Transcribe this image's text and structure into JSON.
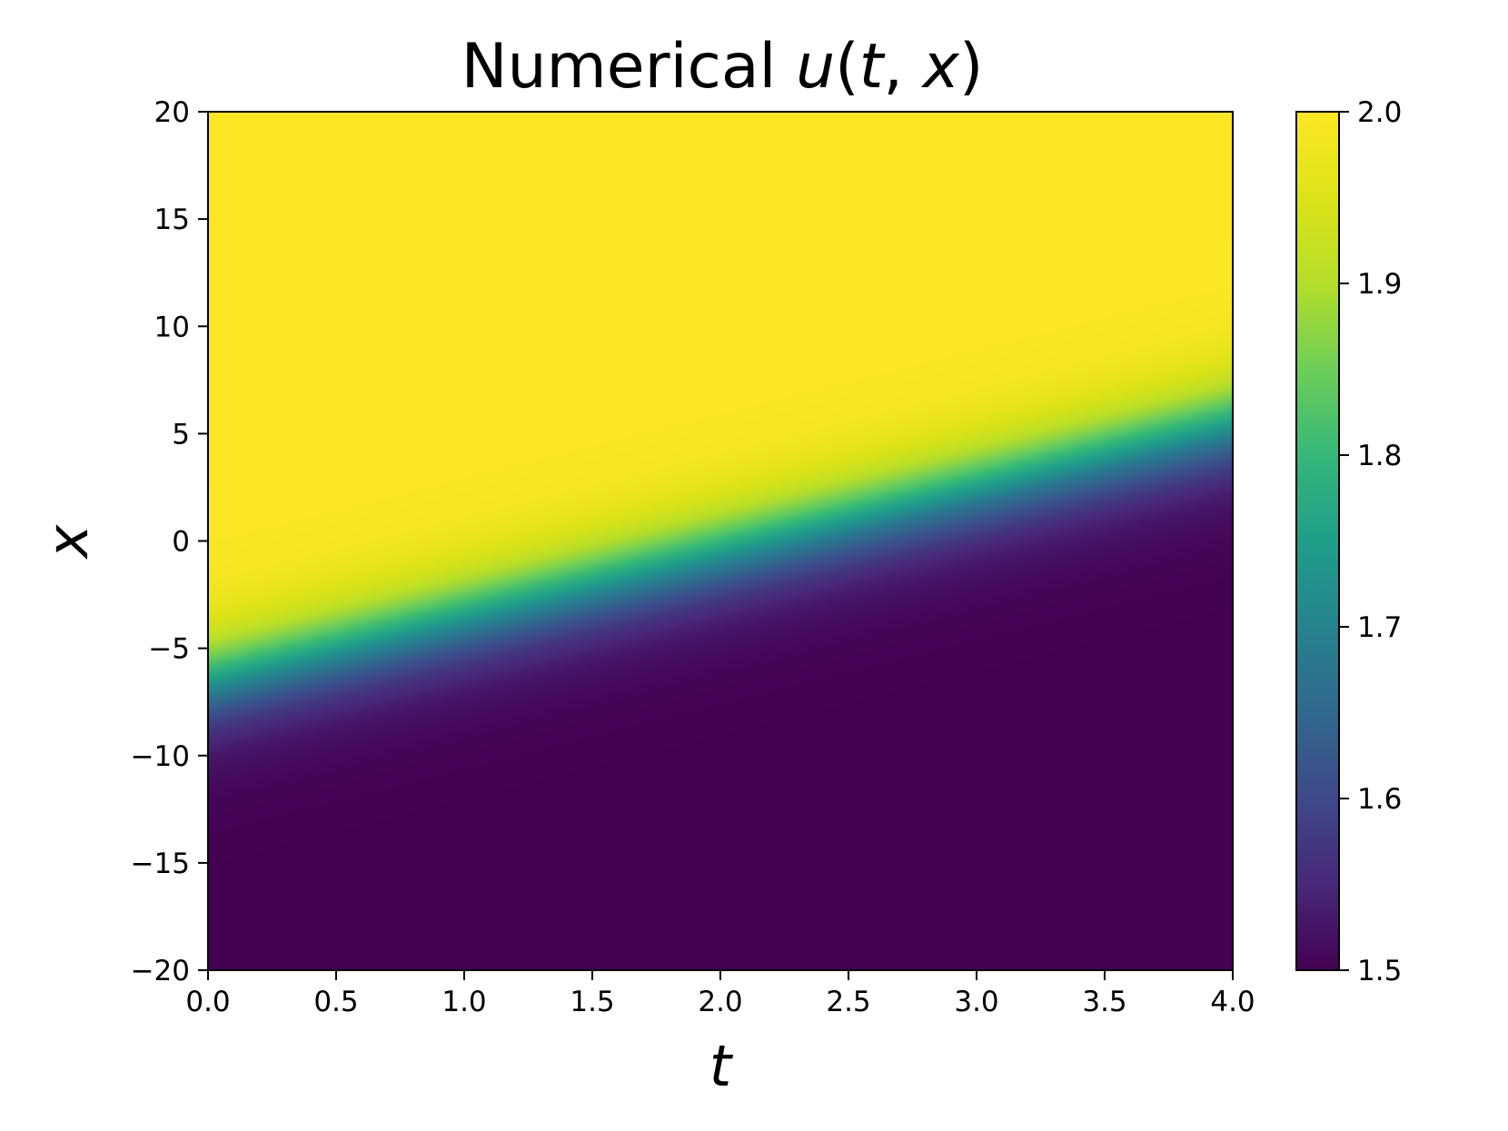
{
  "chart_data": {
    "type": "heatmap",
    "title_plain": "Numerical ",
    "title_func": "u",
    "title_open": "(",
    "title_t": "t",
    "title_comma": ", ",
    "title_x": "x",
    "title_close": ")",
    "xlabel": "t",
    "ylabel": "x",
    "xlim": [
      0.0,
      4.0
    ],
    "ylim": [
      -20,
      20
    ],
    "xticks": [
      0.0,
      0.5,
      1.0,
      1.5,
      2.0,
      2.5,
      3.0,
      3.5,
      4.0
    ],
    "xtick_labels": [
      "0.0",
      "0.5",
      "1.0",
      "1.5",
      "2.0",
      "2.5",
      "3.0",
      "3.5",
      "4.0"
    ],
    "yticks": [
      20,
      15,
      10,
      5,
      0,
      -5,
      -10,
      -15,
      -20
    ],
    "ytick_labels": [
      "20",
      "15",
      "10",
      "5",
      "0",
      "−5",
      "−10",
      "−15",
      "−20"
    ],
    "colorbar": {
      "colormap": "viridis",
      "range": [
        1.5,
        2.0
      ],
      "ticks": [
        2.0,
        1.9,
        1.8,
        1.7,
        1.6,
        1.5
      ],
      "tick_labels": [
        "2.0",
        "1.9",
        "1.8",
        "1.7",
        "1.6",
        "1.5"
      ]
    },
    "field": {
      "description_values": "u(t,x) transitions from 1.5 (low x) to 2.0 (high x) across a front",
      "u_low": 1.5,
      "u_high": 2.0,
      "front_center_at_t0": -6.5,
      "front_speed": 3.0,
      "front_width": 1.3
    },
    "grid": false
  }
}
